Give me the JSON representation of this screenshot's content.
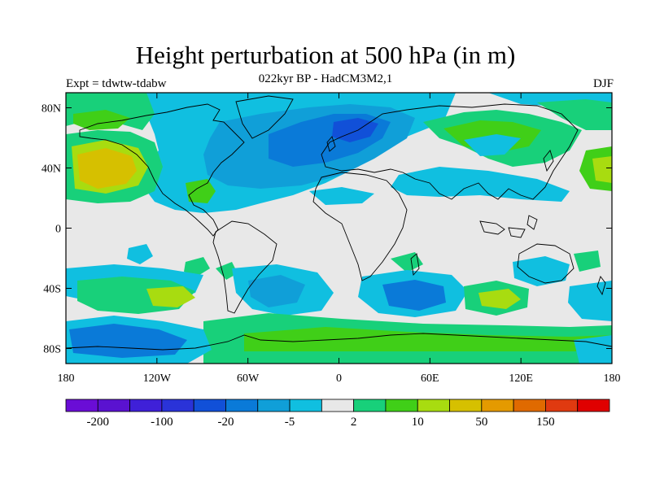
{
  "title": "Height perturbation at 500 hPa (in m)",
  "subtitle": "022kyr BP - HadCM3M2,1",
  "left_label": "Expt = tdwtw-tdabw",
  "right_label": "DJF",
  "lon_ticks": [
    "180",
    "120W",
    "60W",
    "0",
    "60E",
    "120E",
    "180"
  ],
  "lat_ticks": [
    "80N",
    "40N",
    "0",
    "40S",
    "80S"
  ],
  "colorbar": {
    "colors": [
      "#6a0dd6",
      "#5a12d0",
      "#3f20d8",
      "#2a33d8",
      "#1150d8",
      "#0a7ad8",
      "#109fd8",
      "#10bfe0",
      "#e8e8e8",
      "#18d07a",
      "#40cf18",
      "#a8dc10",
      "#d6c000",
      "#e49a00",
      "#e06a00",
      "#e03a10",
      "#e00000"
    ],
    "labels": [
      "-200",
      "-100",
      "-20",
      "-5",
      "2",
      "10",
      "50",
      "150"
    ]
  },
  "colors": {
    "background_field": "#e8e8e8",
    "coast": "#000000"
  }
}
